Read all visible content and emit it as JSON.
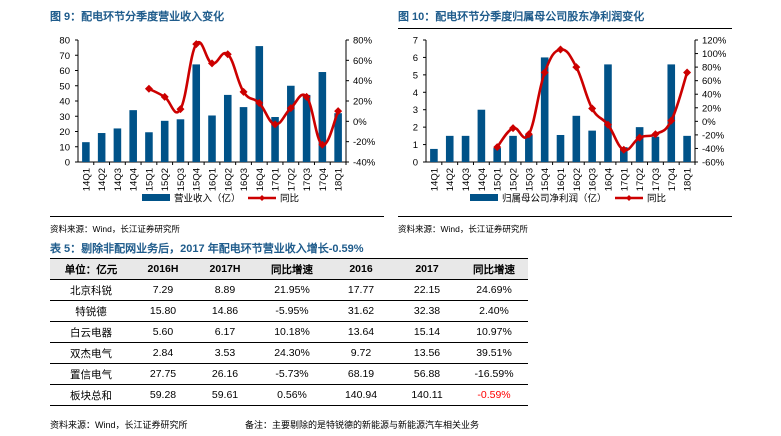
{
  "figure9": {
    "title": "图 9：配电环节分季度营业收入变化",
    "source": "资料来源：Wind，长江证券研究所"
  },
  "figure10": {
    "title": "图 10：配电环节分季度归属母公司股东净利润变化",
    "source": "资料来源：Wind，长江证券研究所"
  },
  "chart_data": [
    {
      "type": "bar",
      "title": "图 9：配电环节分季度营业收入变化",
      "categories": [
        "14Q1",
        "14Q2",
        "14Q3",
        "14Q4",
        "15Q1",
        "15Q2",
        "15Q3",
        "15Q4",
        "16Q1",
        "16Q2",
        "16Q3",
        "16Q4",
        "17Q1",
        "17Q2",
        "17Q3",
        "17Q4",
        "18Q1"
      ],
      "series": [
        {
          "name": "营业收入（亿）",
          "type": "bar",
          "axis": "left",
          "color": "#005288",
          "values": [
            13,
            19,
            22,
            34,
            19.5,
            27,
            28,
            64,
            30.5,
            44,
            36,
            76,
            29.5,
            50,
            44,
            59,
            32
          ]
        },
        {
          "name": "同比",
          "type": "line",
          "axis": "right",
          "color": "#cc0000",
          "values": [
            null,
            null,
            null,
            null,
            32,
            24,
            12,
            76,
            57,
            66,
            29,
            18,
            -3,
            13,
            24,
            -23,
            10
          ]
        }
      ],
      "ylim_left": [
        0,
        80
      ],
      "yticks_left": [
        "0",
        "10",
        "20",
        "30",
        "40",
        "50",
        "60",
        "70",
        "80"
      ],
      "ylim_right": [
        -40,
        80
      ],
      "yticks_right": [
        "-40%",
        "-20%",
        "0%",
        "20%",
        "40%",
        "60%",
        "80%"
      ],
      "legend": "bottom",
      "grid": false
    },
    {
      "type": "bar",
      "title": "图 10：配电环节分季度归属母公司股东净利润变化",
      "categories": [
        "14Q1",
        "14Q2",
        "14Q3",
        "14Q4",
        "15Q1",
        "15Q2",
        "15Q3",
        "15Q4",
        "16Q1",
        "16Q2",
        "16Q3",
        "16Q4",
        "17Q1",
        "17Q2",
        "17Q3",
        "17Q4",
        "18Q1"
      ],
      "series": [
        {
          "name": "归属母公司净利润（亿）",
          "type": "bar",
          "axis": "left",
          "color": "#005288",
          "values": [
            0.75,
            1.5,
            1.5,
            3.0,
            0.8,
            1.5,
            1.55,
            6.0,
            1.55,
            2.65,
            1.8,
            5.6,
            0.85,
            2.0,
            1.45,
            5.6,
            1.5
          ]
        },
        {
          "name": "同比",
          "type": "line",
          "axis": "right",
          "color": "#cc0000",
          "values": [
            null,
            null,
            null,
            null,
            -38,
            -10,
            -19,
            72,
            106,
            80,
            19,
            -5,
            -42,
            -24,
            -19,
            1,
            72
          ]
        }
      ],
      "ylim_left": [
        0,
        7
      ],
      "yticks_left": [
        "0",
        "1",
        "2",
        "3",
        "4",
        "5",
        "6",
        "7"
      ],
      "ylim_right": [
        -60,
        120
      ],
      "yticks_right": [
        "-60%",
        "-40%",
        "-20%",
        "0%",
        "20%",
        "40%",
        "60%",
        "80%",
        "100%",
        "120%"
      ],
      "legend": "bottom",
      "grid": false
    }
  ],
  "table5": {
    "title": "表 5：剔除非配网业务后，2017 年配电环节营业收入增长-0.59%",
    "headers": [
      "单位：亿元",
      "2016H",
      "2017H",
      "同比增速",
      "2016",
      "2017",
      "同比增速"
    ],
    "rows": [
      [
        "北京科锐",
        "7.29",
        "8.89",
        "21.95%",
        "17.77",
        "22.15",
        "24.69%"
      ],
      [
        "特锐德",
        "15.80",
        "14.86",
        "-5.95%",
        "31.62",
        "32.38",
        "2.40%"
      ],
      [
        "白云电器",
        "5.60",
        "6.17",
        "10.18%",
        "13.64",
        "15.14",
        "10.97%"
      ],
      [
        "双杰电气",
        "2.84",
        "3.53",
        "24.30%",
        "9.72",
        "13.56",
        "39.51%"
      ],
      [
        "置信电气",
        "27.75",
        "26.16",
        "-5.73%",
        "68.19",
        "56.88",
        "-16.59%"
      ],
      [
        "板块总和",
        "59.28",
        "59.61",
        "0.56%",
        "140.94",
        "140.11",
        "-0.59%"
      ]
    ],
    "highlight_color": "#ff0000",
    "source": "资料来源：Wind，长江证券研究所",
    "note": "备注：主要剔除的是特锐德的新能源与新能源汽车相关业务"
  }
}
